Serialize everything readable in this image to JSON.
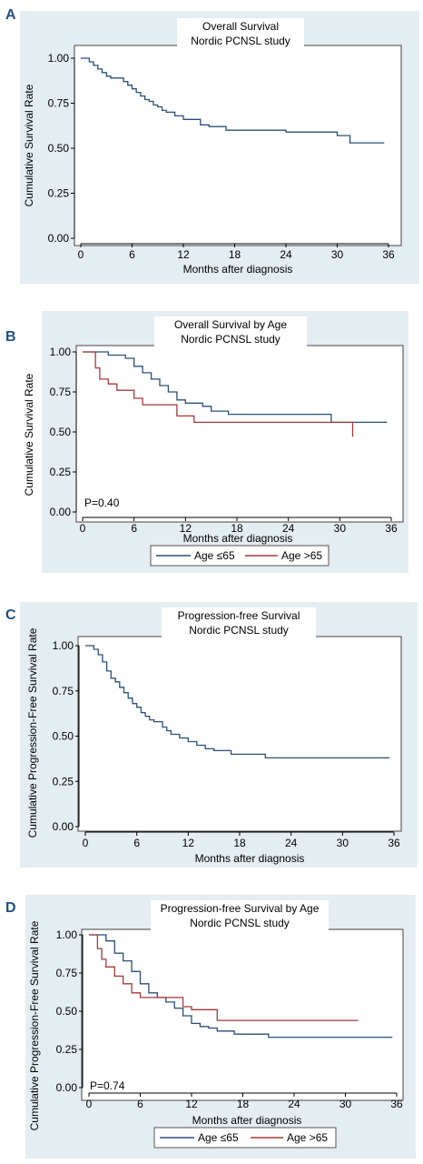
{
  "panels": [
    {
      "letter": "A",
      "title_line1": "Overall Survival",
      "title_line2": "Nordic PCNSL study",
      "ylabel": "Cumulative Survival Rate",
      "xlabel": "Months after diagnosis"
    },
    {
      "letter": "B",
      "title_line1": "Overall Survival by Age",
      "title_line2": "Nordic PCNSL study",
      "ylabel": "Cumulative Survival Rate",
      "xlabel": "Months after diagnosis",
      "pvalue": "P=0.40",
      "legend": [
        "Age ≤65",
        "Age >65"
      ]
    },
    {
      "letter": "C",
      "title_line1": "Progression-free Survival",
      "title_line2": "Nordic PCNSL study",
      "ylabel": "Cumulative Progression-Free Survival Rate",
      "xlabel": "Months after diagnosis"
    },
    {
      "letter": "D",
      "title_line1": "Progression-free Survival by Age",
      "title_line2": "Nordic PCNSL study",
      "ylabel": "Cumulative Progression-Free Survival Rate",
      "xlabel": "Months after diagnosis",
      "pvalue": "P=0.74",
      "legend": [
        "Age ≤65",
        "Age >65"
      ]
    }
  ],
  "colors": {
    "series_1": "#2b4f78",
    "series_2": "#a33a3a",
    "background": "#e4edf2"
  },
  "chart_data": [
    {
      "type": "line",
      "title": "Overall Survival Nordic PCNSL study",
      "xlabel": "Months after diagnosis",
      "ylabel": "Cumulative Survival Rate",
      "xlim": [
        0,
        36
      ],
      "ylim": [
        0,
        1
      ],
      "xticks": [
        0,
        6,
        12,
        18,
        24,
        30,
        36
      ],
      "yticks": [
        0.0,
        0.25,
        0.5,
        0.75,
        1.0
      ],
      "ytick_labels": [
        "0.00",
        "0.25",
        "0.50",
        "0.75",
        "1.00"
      ],
      "series": [
        {
          "x": [
            0,
            1,
            1.5,
            2,
            2.5,
            3,
            3.5,
            5,
            5.5,
            6,
            6.5,
            7,
            7.5,
            8,
            8.5,
            9,
            9.5,
            10,
            11,
            12,
            14,
            15,
            17,
            24,
            30,
            31.5,
            35.5
          ],
          "y": [
            1.0,
            0.98,
            0.96,
            0.94,
            0.92,
            0.9,
            0.89,
            0.87,
            0.85,
            0.83,
            0.81,
            0.79,
            0.77,
            0.76,
            0.74,
            0.73,
            0.71,
            0.7,
            0.68,
            0.66,
            0.63,
            0.62,
            0.6,
            0.59,
            0.57,
            0.53,
            0.53
          ]
        }
      ]
    },
    {
      "type": "line",
      "title": "Overall Survival by Age Nordic PCNSL study",
      "xlabel": "Months after diagnosis",
      "ylabel": "Cumulative Survival Rate",
      "xlim": [
        0,
        36
      ],
      "ylim": [
        0,
        1
      ],
      "xticks": [
        0,
        6,
        12,
        18,
        24,
        30,
        36
      ],
      "yticks": [
        0.0,
        0.25,
        0.5,
        0.75,
        1.0
      ],
      "ytick_labels": [
        "0.00",
        "0.25",
        "0.50",
        "0.75",
        "1.00"
      ],
      "annotation": "P=0.40",
      "series": [
        {
          "name": "Age ≤65",
          "x": [
            0,
            3,
            5,
            6,
            7,
            8,
            9,
            10,
            11,
            12,
            14,
            15,
            17,
            29,
            35.5
          ],
          "y": [
            1.0,
            0.98,
            0.96,
            0.91,
            0.87,
            0.83,
            0.79,
            0.75,
            0.7,
            0.68,
            0.66,
            0.63,
            0.61,
            0.56,
            0.56
          ]
        },
        {
          "name": "Age >65",
          "x": [
            0,
            1.5,
            2,
            3,
            4,
            6,
            7,
            11,
            13,
            31.5,
            31.5
          ],
          "y": [
            1.0,
            0.9,
            0.83,
            0.8,
            0.76,
            0.71,
            0.67,
            0.6,
            0.56,
            0.56,
            0.47
          ]
        }
      ]
    },
    {
      "type": "line",
      "title": "Progression-free Survival Nordic PCNSL study",
      "xlabel": "Months after diagnosis",
      "ylabel": "Cumulative Progression-Free Survival Rate",
      "xlim": [
        0,
        36
      ],
      "ylim": [
        0,
        1
      ],
      "xticks": [
        0,
        6,
        12,
        18,
        24,
        30,
        36
      ],
      "yticks": [
        0.0,
        0.25,
        0.5,
        0.75,
        1.0
      ],
      "ytick_labels": [
        "0.00",
        "0.25",
        "0.50",
        "0.75",
        "1.00"
      ],
      "series": [
        {
          "x": [
            0,
            1,
            1.5,
            2,
            2.5,
            3,
            3.5,
            4,
            4.5,
            5,
            5.5,
            6,
            6.5,
            7,
            7.5,
            8,
            9,
            9.5,
            10,
            11,
            12,
            13,
            14,
            15,
            17,
            21,
            35.5
          ],
          "y": [
            1.0,
            0.98,
            0.95,
            0.91,
            0.86,
            0.82,
            0.8,
            0.77,
            0.74,
            0.71,
            0.68,
            0.66,
            0.63,
            0.61,
            0.59,
            0.58,
            0.55,
            0.53,
            0.51,
            0.49,
            0.47,
            0.45,
            0.43,
            0.42,
            0.4,
            0.38,
            0.38
          ]
        }
      ]
    },
    {
      "type": "line",
      "title": "Progression-free Survival by Age Nordic PCNSL study",
      "xlabel": "Months after diagnosis",
      "ylabel": "Cumulative Progression-Free Survival Rate",
      "xlim": [
        0,
        36
      ],
      "ylim": [
        0,
        1
      ],
      "xticks": [
        0,
        6,
        12,
        18,
        24,
        30,
        36
      ],
      "yticks": [
        0.0,
        0.25,
        0.5,
        0.75,
        1.0
      ],
      "ytick_labels": [
        "0.00",
        "0.25",
        "0.50",
        "0.75",
        "1.00"
      ],
      "annotation": "P=0.74",
      "series": [
        {
          "name": "Age ≤65",
          "x": [
            0,
            2,
            3,
            4,
            5,
            6,
            7,
            8,
            9,
            10,
            11,
            12,
            13,
            14,
            15,
            17,
            21,
            35.5
          ],
          "y": [
            1.0,
            0.96,
            0.88,
            0.83,
            0.76,
            0.68,
            0.62,
            0.59,
            0.56,
            0.52,
            0.47,
            0.42,
            0.4,
            0.39,
            0.37,
            0.35,
            0.33,
            0.33
          ]
        },
        {
          "name": "Age >65",
          "x": [
            0,
            1,
            1.5,
            2,
            3,
            4,
            5,
            6,
            11,
            12,
            15,
            31.5
          ],
          "y": [
            1.0,
            0.91,
            0.84,
            0.79,
            0.73,
            0.68,
            0.62,
            0.59,
            0.53,
            0.51,
            0.44,
            0.44
          ]
        }
      ]
    }
  ]
}
